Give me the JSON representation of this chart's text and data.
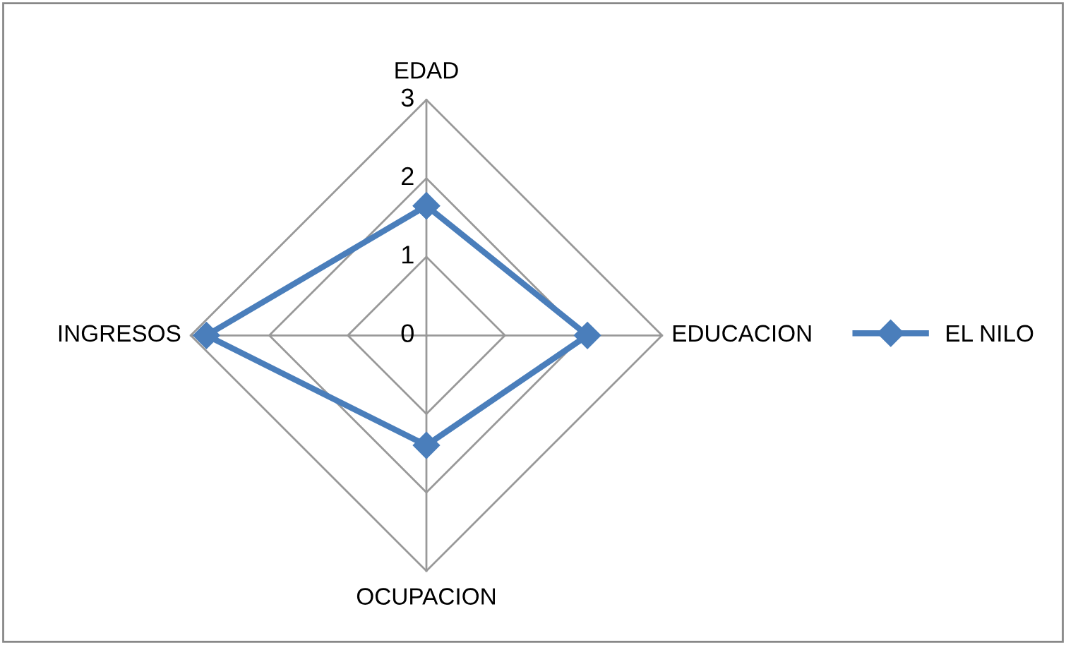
{
  "chart_data": {
    "type": "radar",
    "categories": [
      "EDAD",
      "EDUCACION",
      "OCUPACION",
      "INGRESOS"
    ],
    "series": [
      {
        "name": "EL NILO",
        "color": "#4a7ebb",
        "values": [
          1.65,
          2.05,
          1.4,
          2.8
        ]
      }
    ],
    "ylim": [
      0,
      3
    ],
    "yticks": [
      0,
      1,
      2,
      3
    ],
    "grid": true,
    "legend": "right",
    "marker": "diamond",
    "line_style": "solid"
  }
}
